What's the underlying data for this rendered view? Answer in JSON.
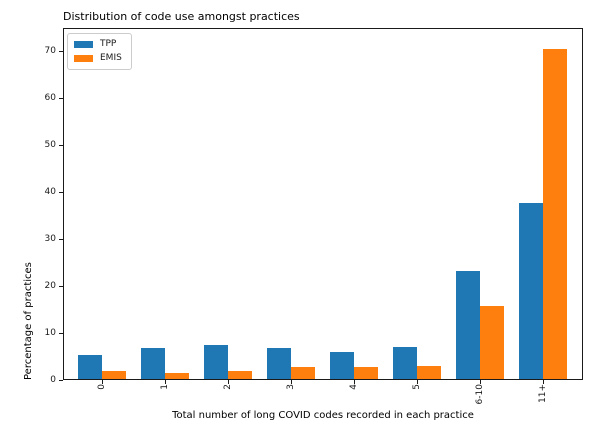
{
  "title": "Distribution of code use amongst practices",
  "legend": {
    "items": [
      {
        "label": "TPP",
        "color": "#1f77b4"
      },
      {
        "label": "EMIS",
        "color": "#ff7f0e"
      }
    ]
  },
  "colors": {
    "tpp_blue": "#1f77b4",
    "emis_orange": "#ff7f0e",
    "axis": "#1a1a1a",
    "background": "#ffffff"
  },
  "chart_data": {
    "type": "bar",
    "title": "Distribution of code use amongst practices",
    "xlabel": "Total number of long COVID codes recorded in each practice",
    "ylabel": "Percentage of practices",
    "categories": [
      "0",
      "1",
      "2",
      "3",
      "4",
      "5",
      "6-10",
      "11+"
    ],
    "series": [
      {
        "name": "TPP",
        "color": "#1f77b4",
        "values": [
          5.3,
          6.8,
          7.4,
          6.8,
          6.0,
          7.0,
          23.3,
          37.6
        ]
      },
      {
        "name": "EMIS",
        "color": "#ff7f0e",
        "values": [
          1.9,
          1.4,
          2.0,
          2.8,
          2.7,
          3.0,
          15.8,
          70.5
        ]
      }
    ],
    "ylim": [
      0,
      74.9
    ],
    "yticks": [
      0,
      10,
      20,
      30,
      40,
      50,
      60,
      70
    ],
    "grid": false,
    "legend_position": "upper left"
  }
}
